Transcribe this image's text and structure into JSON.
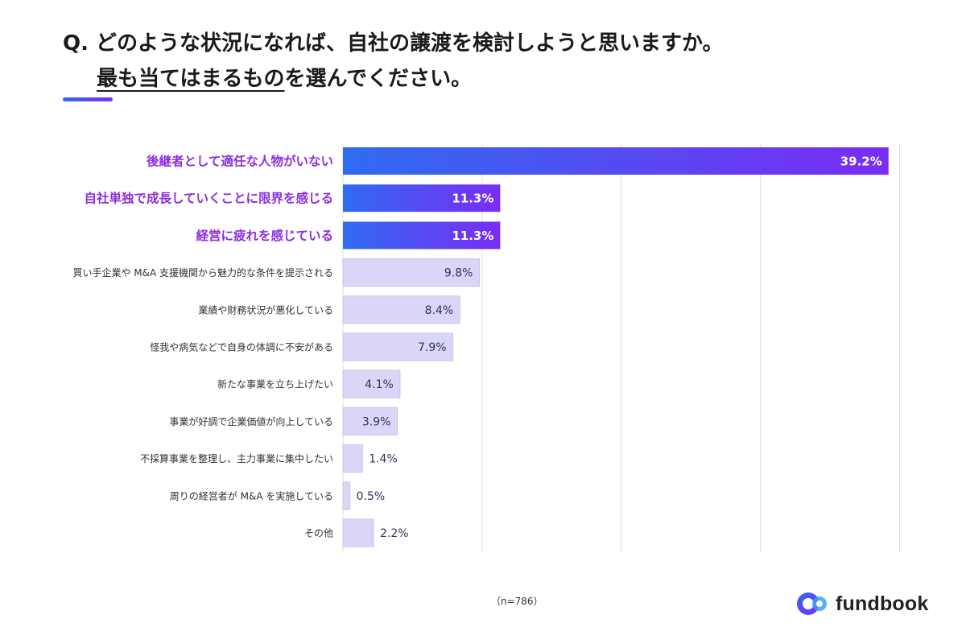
{
  "title": {
    "prefix": "Q.",
    "line1": "どのような状況になれば、自社の譲渡を検討しようと思いますか。",
    "line2_underlined": "最も当てはまるもの",
    "line2_rest": "を選んでください。"
  },
  "colors": {
    "highlight_start": "#2f6bf0",
    "highlight_end": "#7a2cf5",
    "highlight_label": "#8b2ee0",
    "normal_bar": "#d9d6f7",
    "normal_bar_border": "#c6c1f0",
    "grid": "#dddddd"
  },
  "chart_data": {
    "type": "bar",
    "orientation": "horizontal",
    "categories": [
      "後継者として適任な人物がいない",
      "自社単独で成長していくことに限界を感じる",
      "経営に疲れを感じている",
      "買い手企業や M&A 支援機関から魅力的な条件を提示される",
      "業績や財務状況が悪化している",
      "怪我や病気などで自身の体調に不安がある",
      "新たな事業を立ち上げたい",
      "事業が好調で企業価値が向上している",
      "不採算事業を整理し、主力事業に集中したい",
      "周りの経営者が M&A を実施している",
      "その他"
    ],
    "values": [
      39.2,
      11.3,
      11.3,
      9.8,
      8.4,
      7.9,
      4.1,
      3.9,
      1.4,
      0.5,
      2.2
    ],
    "value_labels": [
      "39.2%",
      "11.3%",
      "11.3%",
      "9.8%",
      "8.4%",
      "7.9%",
      "4.1%",
      "3.9%",
      "1.4%",
      "0.5%",
      "2.2%"
    ],
    "highlighted": [
      true,
      true,
      true,
      false,
      false,
      false,
      false,
      false,
      false,
      false,
      false
    ],
    "xlim": [
      0,
      40
    ],
    "grid": true
  },
  "footnote": "（n=786）",
  "logo": {
    "text": "fundbook"
  }
}
